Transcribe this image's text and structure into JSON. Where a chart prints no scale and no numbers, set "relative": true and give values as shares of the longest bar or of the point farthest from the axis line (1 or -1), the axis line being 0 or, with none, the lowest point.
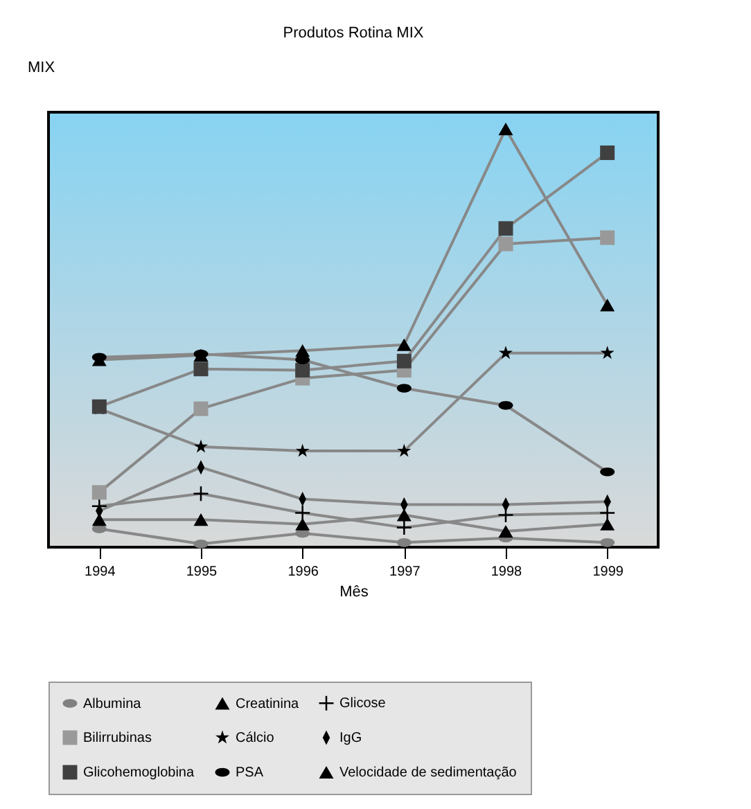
{
  "chart_data": {
    "type": "line",
    "title": "Produtos Rotina MIX",
    "ylabel": "MIX",
    "xlabel": "Mês",
    "categories": [
      "1994",
      "1995",
      "1996",
      "1997",
      "1998",
      "1999"
    ],
    "relative": true,
    "legend": "bottom",
    "series": [
      {
        "name": "Albumina",
        "color": "#808080",
        "marker": "circle",
        "values": [
          0.044,
          0.008,
          0.033,
          0.011,
          0.022,
          0.011
        ]
      },
      {
        "name": "Creatinina",
        "color": "#000000",
        "marker": "triangle",
        "values": [
          0.448,
          0.459,
          0.47,
          0.484,
          1.0,
          0.579
        ]
      },
      {
        "name": "Glicose",
        "color": "#000000",
        "marker": "cross",
        "values": [
          0.098,
          0.128,
          0.082,
          0.047,
          0.077,
          0.082
        ]
      },
      {
        "name": "Bilirrubinas",
        "color": "#999999",
        "marker": "square",
        "values": [
          0.131,
          0.331,
          0.404,
          0.423,
          0.725,
          0.74
        ]
      },
      {
        "name": "Cálcio",
        "color": "#000000",
        "marker": "star",
        "values": [
          0.331,
          0.24,
          0.23,
          0.23,
          0.464,
          0.464
        ]
      },
      {
        "name": "IgG",
        "color": "#000000",
        "marker": "diamond",
        "values": [
          0.087,
          0.191,
          0.115,
          0.102,
          0.102,
          0.109
        ]
      },
      {
        "name": "Glicohemoglobina",
        "color": "#404040",
        "marker": "square",
        "values": [
          0.336,
          0.426,
          0.423,
          0.445,
          0.762,
          0.943
        ]
      },
      {
        "name": "PSA",
        "color": "#000000",
        "marker": "circle",
        "values": [
          0.454,
          0.462,
          0.448,
          0.38,
          0.339,
          0.18
        ]
      },
      {
        "name": "Velocidade de sedimentação",
        "color": "#000000",
        "marker": "triangle",
        "values": [
          0.066,
          0.066,
          0.055,
          0.077,
          0.038,
          0.055
        ]
      }
    ]
  }
}
